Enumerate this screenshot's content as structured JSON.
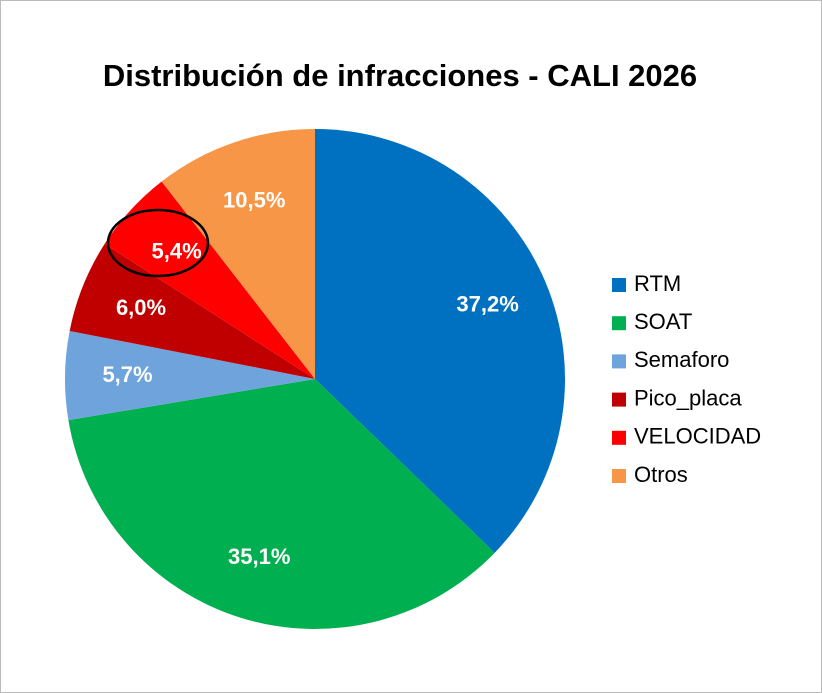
{
  "chart_data": {
    "type": "pie",
    "title": "Distribución de infracciones - CALI 2026",
    "categories": [
      "RTM",
      "SOAT",
      "Semaforo",
      "Pico_placa",
      "VELOCIDAD",
      "Otros"
    ],
    "values": [
      37.2,
      35.1,
      5.7,
      6.0,
      5.4,
      10.5
    ],
    "value_labels": [
      "37,2%",
      "35,1%",
      "5,7%",
      "6,0%",
      "5,4%",
      "10,5%"
    ],
    "colors": [
      "#0070c0",
      "#00b050",
      "#6fa3dc",
      "#c00000",
      "#ff0000",
      "#f79646"
    ],
    "legend": "right"
  }
}
